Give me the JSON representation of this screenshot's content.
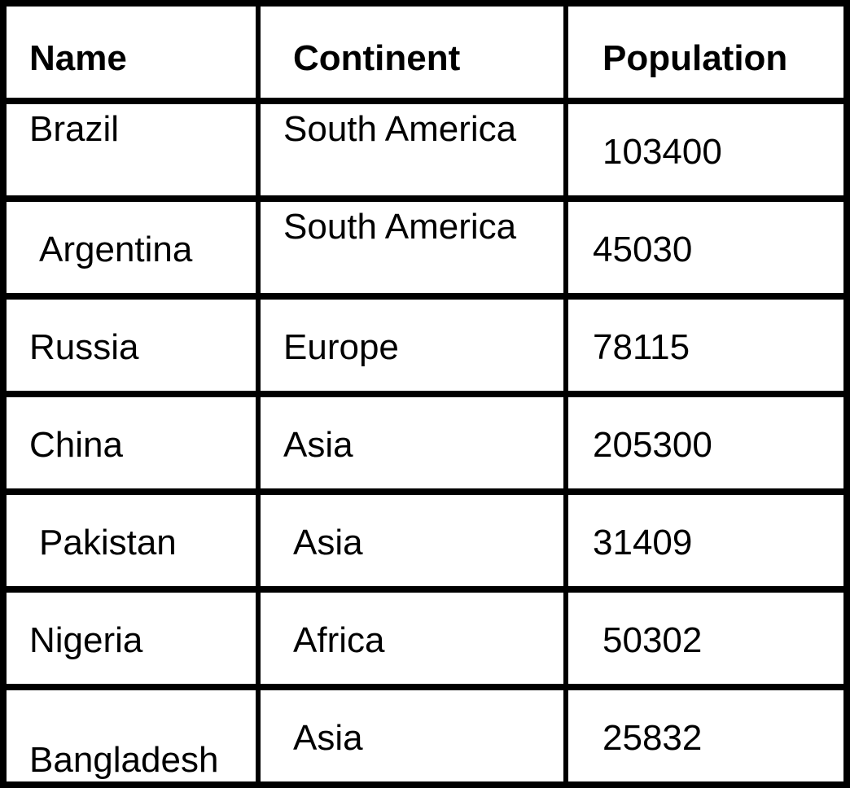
{
  "table": {
    "headers": [
      "Name",
      "Continent",
      "Population"
    ],
    "rows": [
      [
        "Brazil",
        "South America",
        "103400"
      ],
      [
        "Argentina",
        "South America",
        "45030"
      ],
      [
        "Russia",
        "Europe",
        "78115"
      ],
      [
        "China",
        "Asia",
        "205300"
      ],
      [
        "Pakistan",
        "Asia",
        "31409"
      ],
      [
        "Nigeria",
        "Africa",
        "50302"
      ],
      [
        "Bangladesh",
        "Asia",
        "25832"
      ]
    ]
  }
}
